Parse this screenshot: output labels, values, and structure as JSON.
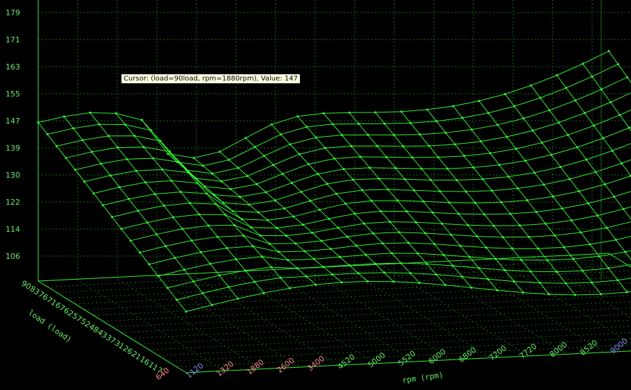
{
  "chart_data": {
    "type": "surface",
    "z_axis": {
      "ticks": [
        "179",
        "171",
        "163",
        "155",
        "147",
        "139",
        "130",
        "122",
        "114",
        "106"
      ]
    },
    "load_axis": {
      "label": "load (load)",
      "ticks": [
        "90",
        "83",
        "76",
        "71",
        "67",
        "62",
        "57",
        "52",
        "48",
        "43",
        "37",
        "31",
        "26",
        "21",
        "16",
        "11",
        "7"
      ]
    },
    "rpm_axis": {
      "label": "rpm (rpm)",
      "ticks": [
        "640",
        "1120",
        "1320",
        "1880",
        "2600",
        "3400",
        "4520",
        "5000",
        "5520",
        "6000",
        "6800",
        "7200",
        "7720",
        "8000",
        "8520",
        "9000"
      ]
    },
    "grid": true,
    "colors": {
      "surface": "#33ee33",
      "grid": "#1c6b1c",
      "axis_text": "#66ee66",
      "rpm_low": "#ff8888",
      "rpm_mid": "#8888ff",
      "background": "#000000"
    }
  },
  "cursor": {
    "text": "Cursor: (load=90load, rpm=1880rpm), Value: 147"
  }
}
